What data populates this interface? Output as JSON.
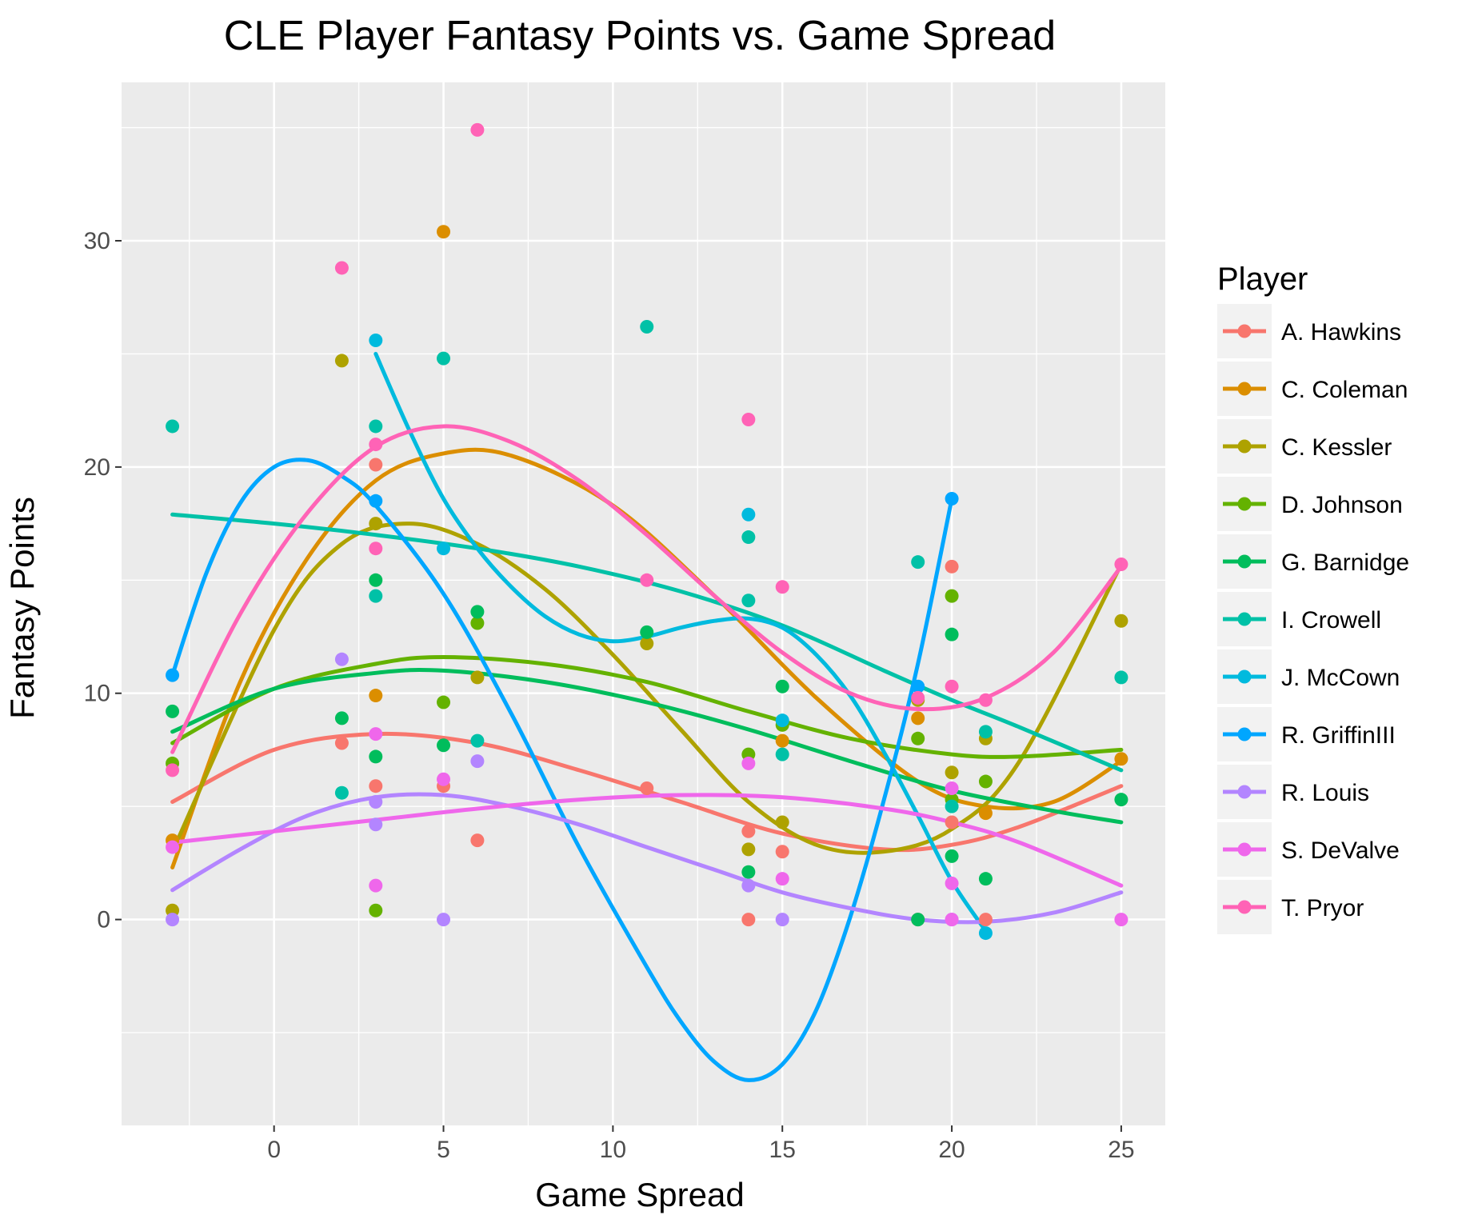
{
  "chart_data": {
    "type": "scatter",
    "title": "CLE Player Fantasy Points vs. Game Spread",
    "xlabel": "Game Spread",
    "ylabel": "Fantasy Points",
    "xlim": [
      -4.5,
      26.3
    ],
    "ylim": [
      -9.1,
      37.0
    ],
    "x_ticks": [
      0,
      5,
      10,
      15,
      20,
      25
    ],
    "y_ticks": [
      0,
      10,
      20,
      30
    ],
    "grid": true,
    "background": "#ebebeb",
    "legend": {
      "title": "Player",
      "position": "right"
    },
    "trend": "smoothed curve per player (loess)",
    "series": [
      {
        "name": "A. Hawkins",
        "color": "#F8766D",
        "points": [
          [
            2,
            7.8
          ],
          [
            3,
            20.1
          ],
          [
            3,
            5.9
          ],
          [
            5,
            5.9
          ],
          [
            6,
            3.5
          ],
          [
            11,
            5.8
          ],
          [
            14,
            0
          ],
          [
            14,
            3.9
          ],
          [
            15,
            3.0
          ],
          [
            19,
            0
          ],
          [
            20,
            15.6
          ],
          [
            20,
            4.3
          ],
          [
            21,
            0
          ]
        ],
        "curve": [
          [
            -3,
            5.2
          ],
          [
            0,
            7.5
          ],
          [
            3,
            8.2
          ],
          [
            6,
            7.8
          ],
          [
            9,
            6.6
          ],
          [
            12,
            5.2
          ],
          [
            15,
            3.8
          ],
          [
            18,
            3.1
          ],
          [
            20,
            3.3
          ],
          [
            22,
            4.1
          ],
          [
            25,
            5.9
          ]
        ]
      },
      {
        "name": "C. Coleman",
        "color": "#DB8E00",
        "points": [
          [
            -3,
            3.5
          ],
          [
            3,
            9.9
          ],
          [
            5,
            30.4
          ],
          [
            15,
            7.9
          ],
          [
            19,
            8.9
          ],
          [
            21,
            4.7
          ],
          [
            25,
            7.1
          ]
        ],
        "curve": [
          [
            -3,
            2.3
          ],
          [
            -1,
            10.5
          ],
          [
            1,
            16.0
          ],
          [
            3,
            19.4
          ],
          [
            5,
            20.6
          ],
          [
            7,
            20.5
          ],
          [
            10,
            18.3
          ],
          [
            13,
            14.3
          ],
          [
            16,
            9.8
          ],
          [
            19,
            6.1
          ],
          [
            21,
            5.0
          ],
          [
            23,
            5.2
          ],
          [
            25,
            7.0
          ]
        ]
      },
      {
        "name": "C. Kessler",
        "color": "#AEA200",
        "points": [
          [
            -3,
            0.4
          ],
          [
            2,
            24.7
          ],
          [
            3,
            17.5
          ],
          [
            6,
            10.7
          ],
          [
            11,
            12.2
          ],
          [
            14,
            3.1
          ],
          [
            15,
            4.3
          ],
          [
            19,
            9.7
          ],
          [
            20,
            6.5
          ],
          [
            21,
            8.0
          ],
          [
            25,
            13.2
          ]
        ],
        "curve": [
          [
            -3,
            3.0
          ],
          [
            0,
            12.8
          ],
          [
            2,
            16.6
          ],
          [
            4,
            17.5
          ],
          [
            6,
            16.6
          ],
          [
            8,
            14.6
          ],
          [
            10,
            11.7
          ],
          [
            12,
            8.4
          ],
          [
            14,
            5.2
          ],
          [
            16,
            3.3
          ],
          [
            18,
            3.0
          ],
          [
            20,
            4.0
          ],
          [
            22,
            7.0
          ],
          [
            25,
            15.7
          ]
        ]
      },
      {
        "name": "D. Johnson",
        "color": "#64B200",
        "points": [
          [
            -3,
            6.9
          ],
          [
            3,
            0.4
          ],
          [
            5,
            9.6
          ],
          [
            6,
            13.1
          ],
          [
            14,
            7.3
          ],
          [
            15,
            8.6
          ],
          [
            19,
            8.0
          ],
          [
            20,
            14.3
          ],
          [
            20,
            5.3
          ],
          [
            21,
            6.1
          ]
        ],
        "curve": [
          [
            -3,
            7.8
          ],
          [
            0,
            10.2
          ],
          [
            3,
            11.3
          ],
          [
            5,
            11.6
          ],
          [
            8,
            11.3
          ],
          [
            11,
            10.5
          ],
          [
            14,
            9.2
          ],
          [
            17,
            8.0
          ],
          [
            20,
            7.3
          ],
          [
            22,
            7.2
          ],
          [
            25,
            7.5
          ]
        ]
      },
      {
        "name": "G. Barnidge",
        "color": "#00BD5C",
        "points": [
          [
            -3,
            9.2
          ],
          [
            2,
            8.9
          ],
          [
            3,
            15.0
          ],
          [
            3,
            7.2
          ],
          [
            5,
            7.7
          ],
          [
            6,
            13.6
          ],
          [
            11,
            12.7
          ],
          [
            14,
            2.1
          ],
          [
            15,
            10.3
          ],
          [
            19,
            0
          ],
          [
            20,
            12.6
          ],
          [
            20,
            2.8
          ],
          [
            21,
            1.8
          ],
          [
            25,
            5.3
          ]
        ],
        "curve": [
          [
            -3,
            8.3
          ],
          [
            0,
            10.2
          ],
          [
            3,
            10.9
          ],
          [
            5,
            11.0
          ],
          [
            8,
            10.5
          ],
          [
            11,
            9.6
          ],
          [
            14,
            8.4
          ],
          [
            17,
            7.0
          ],
          [
            20,
            5.7
          ],
          [
            23,
            4.8
          ],
          [
            25,
            4.3
          ]
        ]
      },
      {
        "name": "I. Crowell",
        "color": "#00C1A7",
        "points": [
          [
            -3,
            21.8
          ],
          [
            2,
            5.6
          ],
          [
            3,
            21.8
          ],
          [
            3,
            14.3
          ],
          [
            5,
            24.8
          ],
          [
            6,
            7.9
          ],
          [
            11,
            26.2
          ],
          [
            14,
            16.9
          ],
          [
            14,
            14.1
          ],
          [
            15,
            7.3
          ],
          [
            19,
            15.8
          ],
          [
            20,
            5.0
          ],
          [
            21,
            8.3
          ],
          [
            25,
            10.7
          ]
        ],
        "curve": [
          [
            -3,
            17.9
          ],
          [
            0,
            17.5
          ],
          [
            3,
            17.0
          ],
          [
            6,
            16.4
          ],
          [
            9,
            15.6
          ],
          [
            12,
            14.5
          ],
          [
            15,
            13.0
          ],
          [
            18,
            11.0
          ],
          [
            20,
            9.7
          ],
          [
            22,
            8.5
          ],
          [
            25,
            6.6
          ]
        ]
      },
      {
        "name": "J. McCown",
        "color": "#00BADE",
        "points": [
          [
            3,
            25.6
          ],
          [
            5,
            16.4
          ],
          [
            14,
            17.9
          ],
          [
            15,
            8.8
          ],
          [
            21,
            -0.6
          ]
        ],
        "curve": [
          [
            3,
            25.0
          ],
          [
            4,
            21.6
          ],
          [
            5,
            18.6
          ],
          [
            6,
            16.4
          ],
          [
            7,
            14.7
          ],
          [
            8,
            13.4
          ],
          [
            9,
            12.6
          ],
          [
            10,
            12.3
          ],
          [
            11,
            12.5
          ],
          [
            12,
            12.9
          ],
          [
            13,
            13.2
          ],
          [
            14,
            13.3
          ],
          [
            15,
            12.9
          ],
          [
            16,
            11.7
          ],
          [
            17,
            9.9
          ],
          [
            18,
            7.4
          ],
          [
            19,
            4.6
          ],
          [
            20,
            1.7
          ],
          [
            21,
            -0.5
          ]
        ]
      },
      {
        "name": "R. GriffinIII",
        "color": "#00A6FF",
        "points": [
          [
            -3,
            10.8
          ],
          [
            3,
            18.5
          ],
          [
            19,
            10.3
          ],
          [
            20,
            18.6
          ]
        ],
        "curve": [
          [
            -3,
            10.8
          ],
          [
            -2,
            15.3
          ],
          [
            -1,
            18.4
          ],
          [
            0,
            20.0
          ],
          [
            1,
            20.3
          ],
          [
            2,
            19.6
          ],
          [
            3,
            18.3
          ],
          [
            5,
            14.4
          ],
          [
            7,
            9.1
          ],
          [
            9,
            3.2
          ],
          [
            11,
            -2.1
          ],
          [
            12,
            -4.5
          ],
          [
            13,
            -6.3
          ],
          [
            14,
            -7.1
          ],
          [
            15,
            -6.4
          ],
          [
            16,
            -4.0
          ],
          [
            17,
            0.1
          ],
          [
            18,
            5.3
          ],
          [
            19,
            11.3
          ],
          [
            20,
            18.6
          ]
        ]
      },
      {
        "name": "R. Louis",
        "color": "#B385FF",
        "points": [
          [
            -3,
            0
          ],
          [
            2,
            11.5
          ],
          [
            3,
            5.2
          ],
          [
            3,
            4.2
          ],
          [
            5,
            0
          ],
          [
            6,
            7.0
          ],
          [
            14,
            1.5
          ],
          [
            15,
            0
          ],
          [
            20,
            0
          ]
        ],
        "curve": [
          [
            -3,
            1.3
          ],
          [
            -1,
            3.1
          ],
          [
            1,
            4.6
          ],
          [
            3,
            5.4
          ],
          [
            5,
            5.5
          ],
          [
            7,
            5.0
          ],
          [
            9,
            4.2
          ],
          [
            11,
            3.2
          ],
          [
            13,
            2.2
          ],
          [
            15,
            1.2
          ],
          [
            17,
            0.5
          ],
          [
            19,
            0.0
          ],
          [
            21,
            -0.1
          ],
          [
            23,
            0.3
          ],
          [
            25,
            1.2
          ]
        ]
      },
      {
        "name": "S. DeValve",
        "color": "#EF67EB",
        "points": [
          [
            -3,
            3.2
          ],
          [
            3,
            8.2
          ],
          [
            3,
            1.5
          ],
          [
            5,
            6.2
          ],
          [
            14,
            6.9
          ],
          [
            15,
            1.8
          ],
          [
            20,
            5.8
          ],
          [
            20,
            1.6
          ],
          [
            20,
            0
          ],
          [
            25,
            0
          ]
        ],
        "curve": [
          [
            -3,
            3.4
          ],
          [
            0,
            3.9
          ],
          [
            3,
            4.4
          ],
          [
            6,
            4.9
          ],
          [
            9,
            5.3
          ],
          [
            12,
            5.5
          ],
          [
            15,
            5.4
          ],
          [
            18,
            4.9
          ],
          [
            20,
            4.3
          ],
          [
            22,
            3.4
          ],
          [
            25,
            1.5
          ]
        ]
      },
      {
        "name": "T. Pryor",
        "color": "#FF63B6",
        "points": [
          [
            -3,
            6.6
          ],
          [
            2,
            28.8
          ],
          [
            3,
            21.0
          ],
          [
            3,
            16.4
          ],
          [
            6,
            34.9
          ],
          [
            11,
            15.0
          ],
          [
            14,
            22.1
          ],
          [
            15,
            14.7
          ],
          [
            19,
            9.8
          ],
          [
            20,
            10.3
          ],
          [
            21,
            9.7
          ],
          [
            25,
            15.7
          ]
        ],
        "curve": [
          [
            -3,
            7.4
          ],
          [
            -1,
            13.5
          ],
          [
            1,
            18.0
          ],
          [
            3,
            20.9
          ],
          [
            5,
            21.8
          ],
          [
            7,
            21.1
          ],
          [
            9,
            19.4
          ],
          [
            11,
            17.0
          ],
          [
            13,
            14.3
          ],
          [
            15,
            11.8
          ],
          [
            17,
            10.0
          ],
          [
            19,
            9.3
          ],
          [
            21,
            9.8
          ],
          [
            23,
            11.8
          ],
          [
            25,
            15.6
          ]
        ]
      }
    ]
  }
}
